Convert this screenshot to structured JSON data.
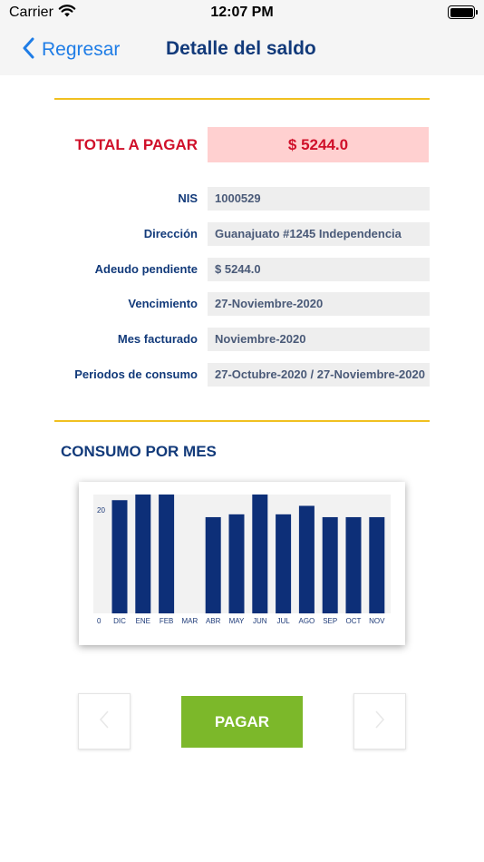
{
  "status_bar": {
    "carrier": "Carrier",
    "time": "12:07 PM"
  },
  "nav": {
    "back_label": "Regresar",
    "title": "Detalle del saldo"
  },
  "total": {
    "label": "TOTAL A PAGAR",
    "value": "$ 5244.0"
  },
  "fields": [
    {
      "label": "NIS",
      "value": "1000529"
    },
    {
      "label": "Dirección",
      "value": "Guanajuato #1245 Independencia"
    },
    {
      "label": "Adeudo pendiente",
      "value": "$ 5244.0"
    },
    {
      "label": "Vencimiento",
      "value": "27-Noviembre-2020"
    },
    {
      "label": "Mes facturado",
      "value": "Noviembre-2020"
    },
    {
      "label": "Periodos de consumo",
      "value": "27-Octubre-2020 / 27-Noviembre-2020"
    }
  ],
  "consumo": {
    "title": "CONSUMO POR MES"
  },
  "chart_data": {
    "type": "bar",
    "categories": [
      "DIC",
      "ENE",
      "FEB",
      "MAR",
      "ABR",
      "MAY",
      "JUN",
      "JUL",
      "AGO",
      "SEP",
      "OCT",
      "NOV"
    ],
    "values": [
      20,
      21,
      21,
      0,
      17,
      17.5,
      21,
      17.5,
      19,
      17,
      17,
      17
    ],
    "ylim": [
      0,
      21
    ],
    "yticks": [
      "0",
      "20"
    ],
    "bar_color": "#0d2f78",
    "plot_background": "#f2f2f2"
  },
  "actions": {
    "pay_label": "PAGAR"
  },
  "colors": {
    "accent_blue": "#1f7de6",
    "title_navy": "#123a7a",
    "total_red": "#d0102a",
    "total_bg": "#ffd0d0",
    "divider_gold": "#f0c020",
    "pay_green": "#7cb82a"
  }
}
